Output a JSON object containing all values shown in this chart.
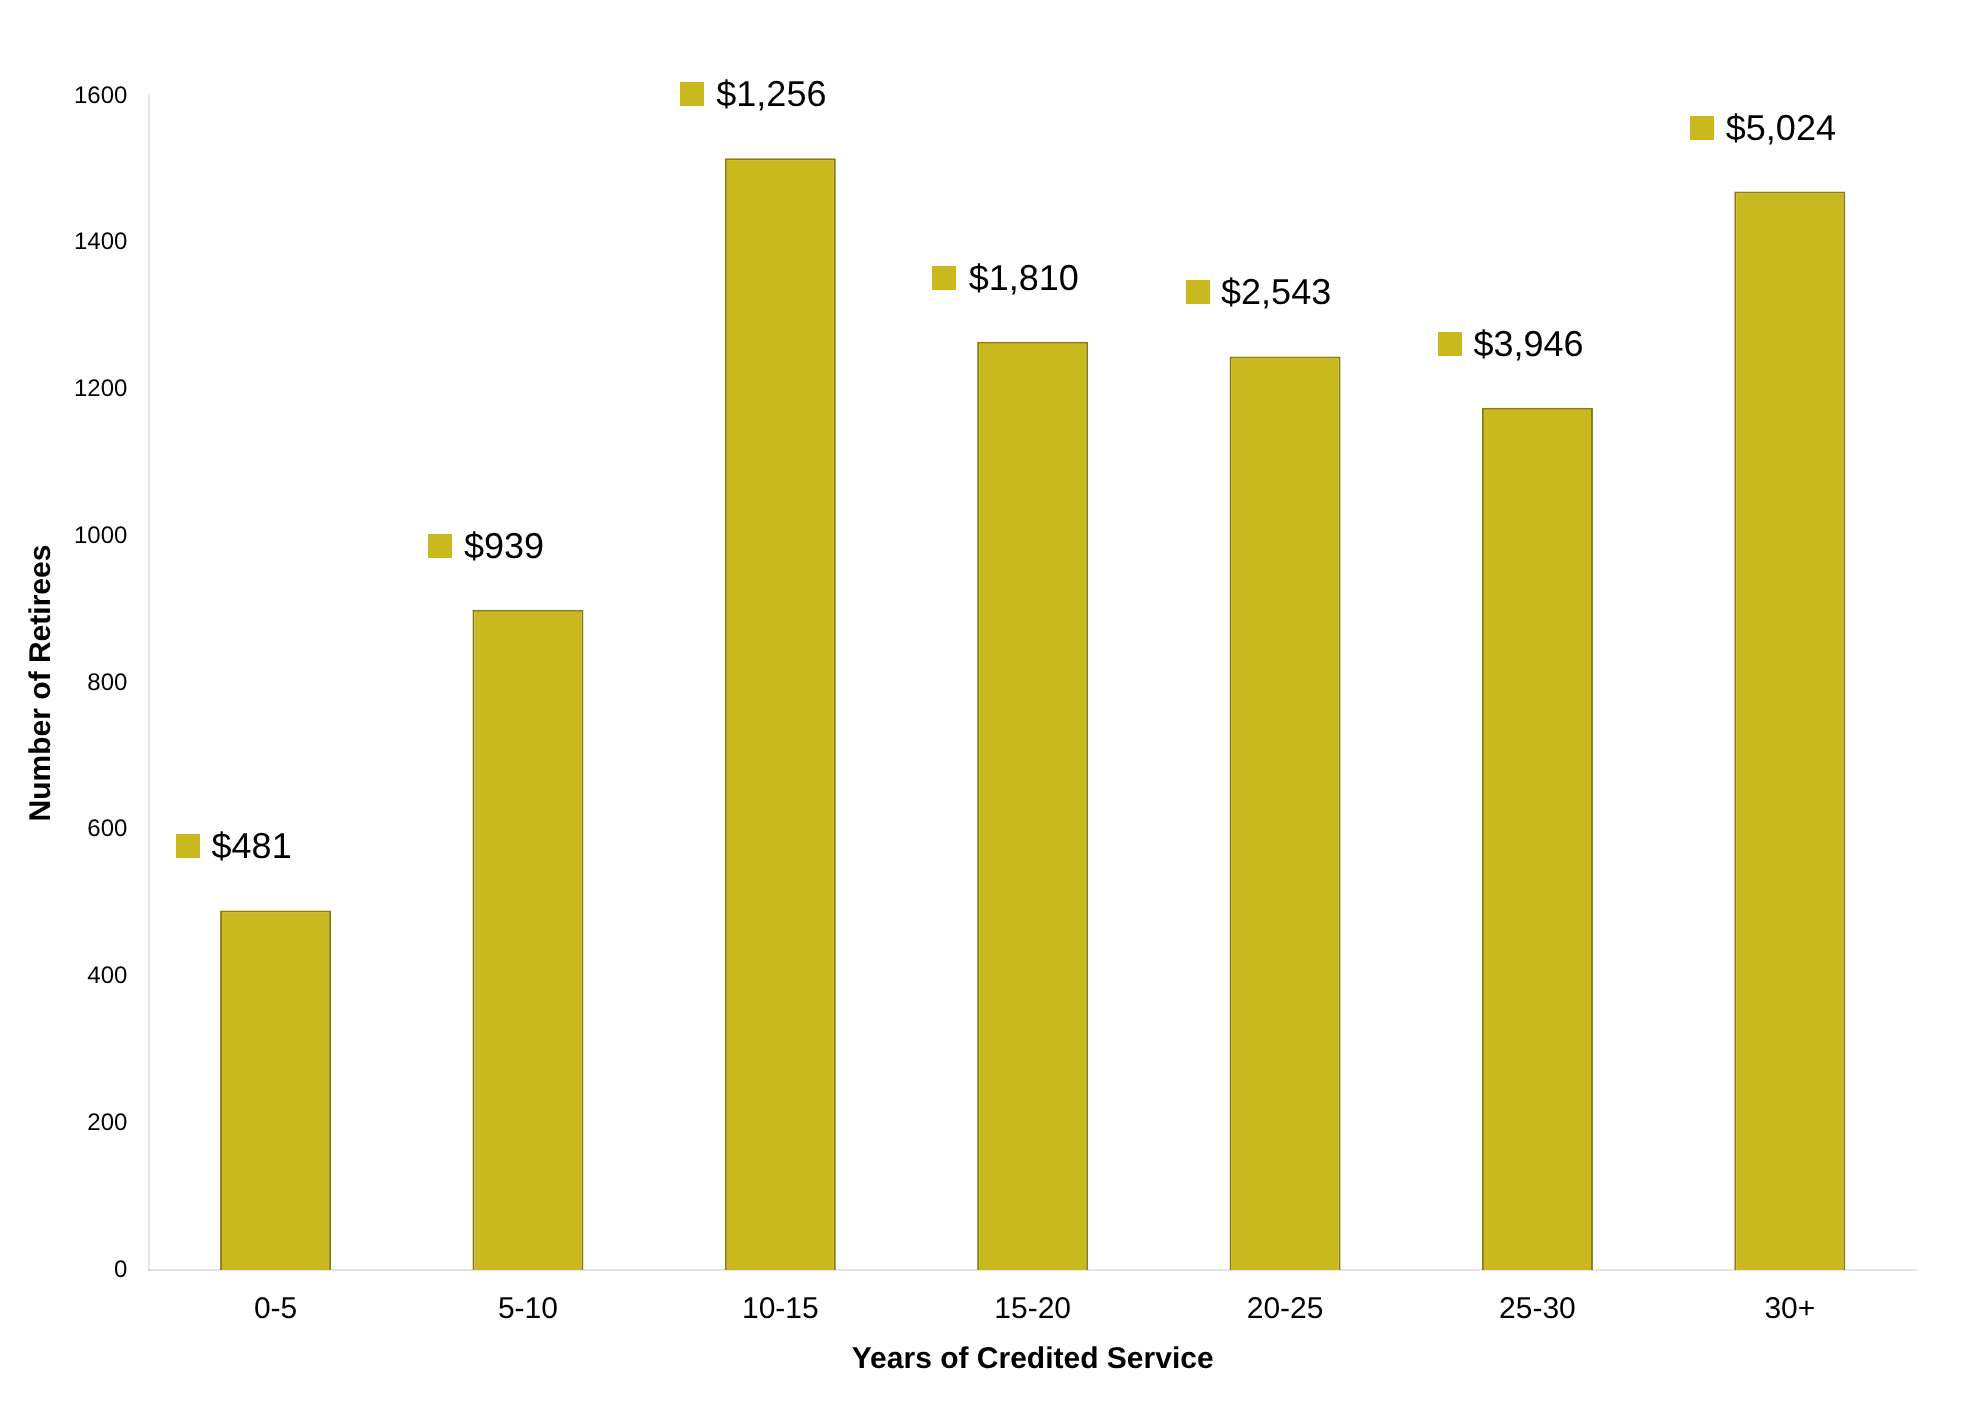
{
  "chart_data": {
    "type": "bar",
    "xlabel": "Years of Credited Service",
    "ylabel": "Number of Retirees",
    "categories": [
      "0-5",
      "5-10",
      "10-15",
      "15-20",
      "20-25",
      "25-30",
      "30+"
    ],
    "values": [
      490,
      900,
      1515,
      1265,
      1245,
      1175,
      1470
    ],
    "color": "#c9b81e",
    "ylim": [
      0,
      1600
    ],
    "yticks": [
      0,
      200,
      400,
      600,
      800,
      1000,
      1200,
      1400,
      1600
    ],
    "grid": false,
    "annotations": [
      {
        "text": "$481",
        "x": "0-5",
        "y": 490
      },
      {
        "text": "$939",
        "x": "5-10",
        "y": 900
      },
      {
        "text": "$1,256",
        "x": "10-15",
        "y": 1515
      },
      {
        "text": "$1,810",
        "x": "15-20",
        "y": 1265
      },
      {
        "text": "$2,543",
        "x": "20-25",
        "y": 1245
      },
      {
        "text": "$3,946",
        "x": "25-30",
        "y": 1175
      },
      {
        "text": "$5,024",
        "x": "30+",
        "y": 1470
      }
    ]
  }
}
